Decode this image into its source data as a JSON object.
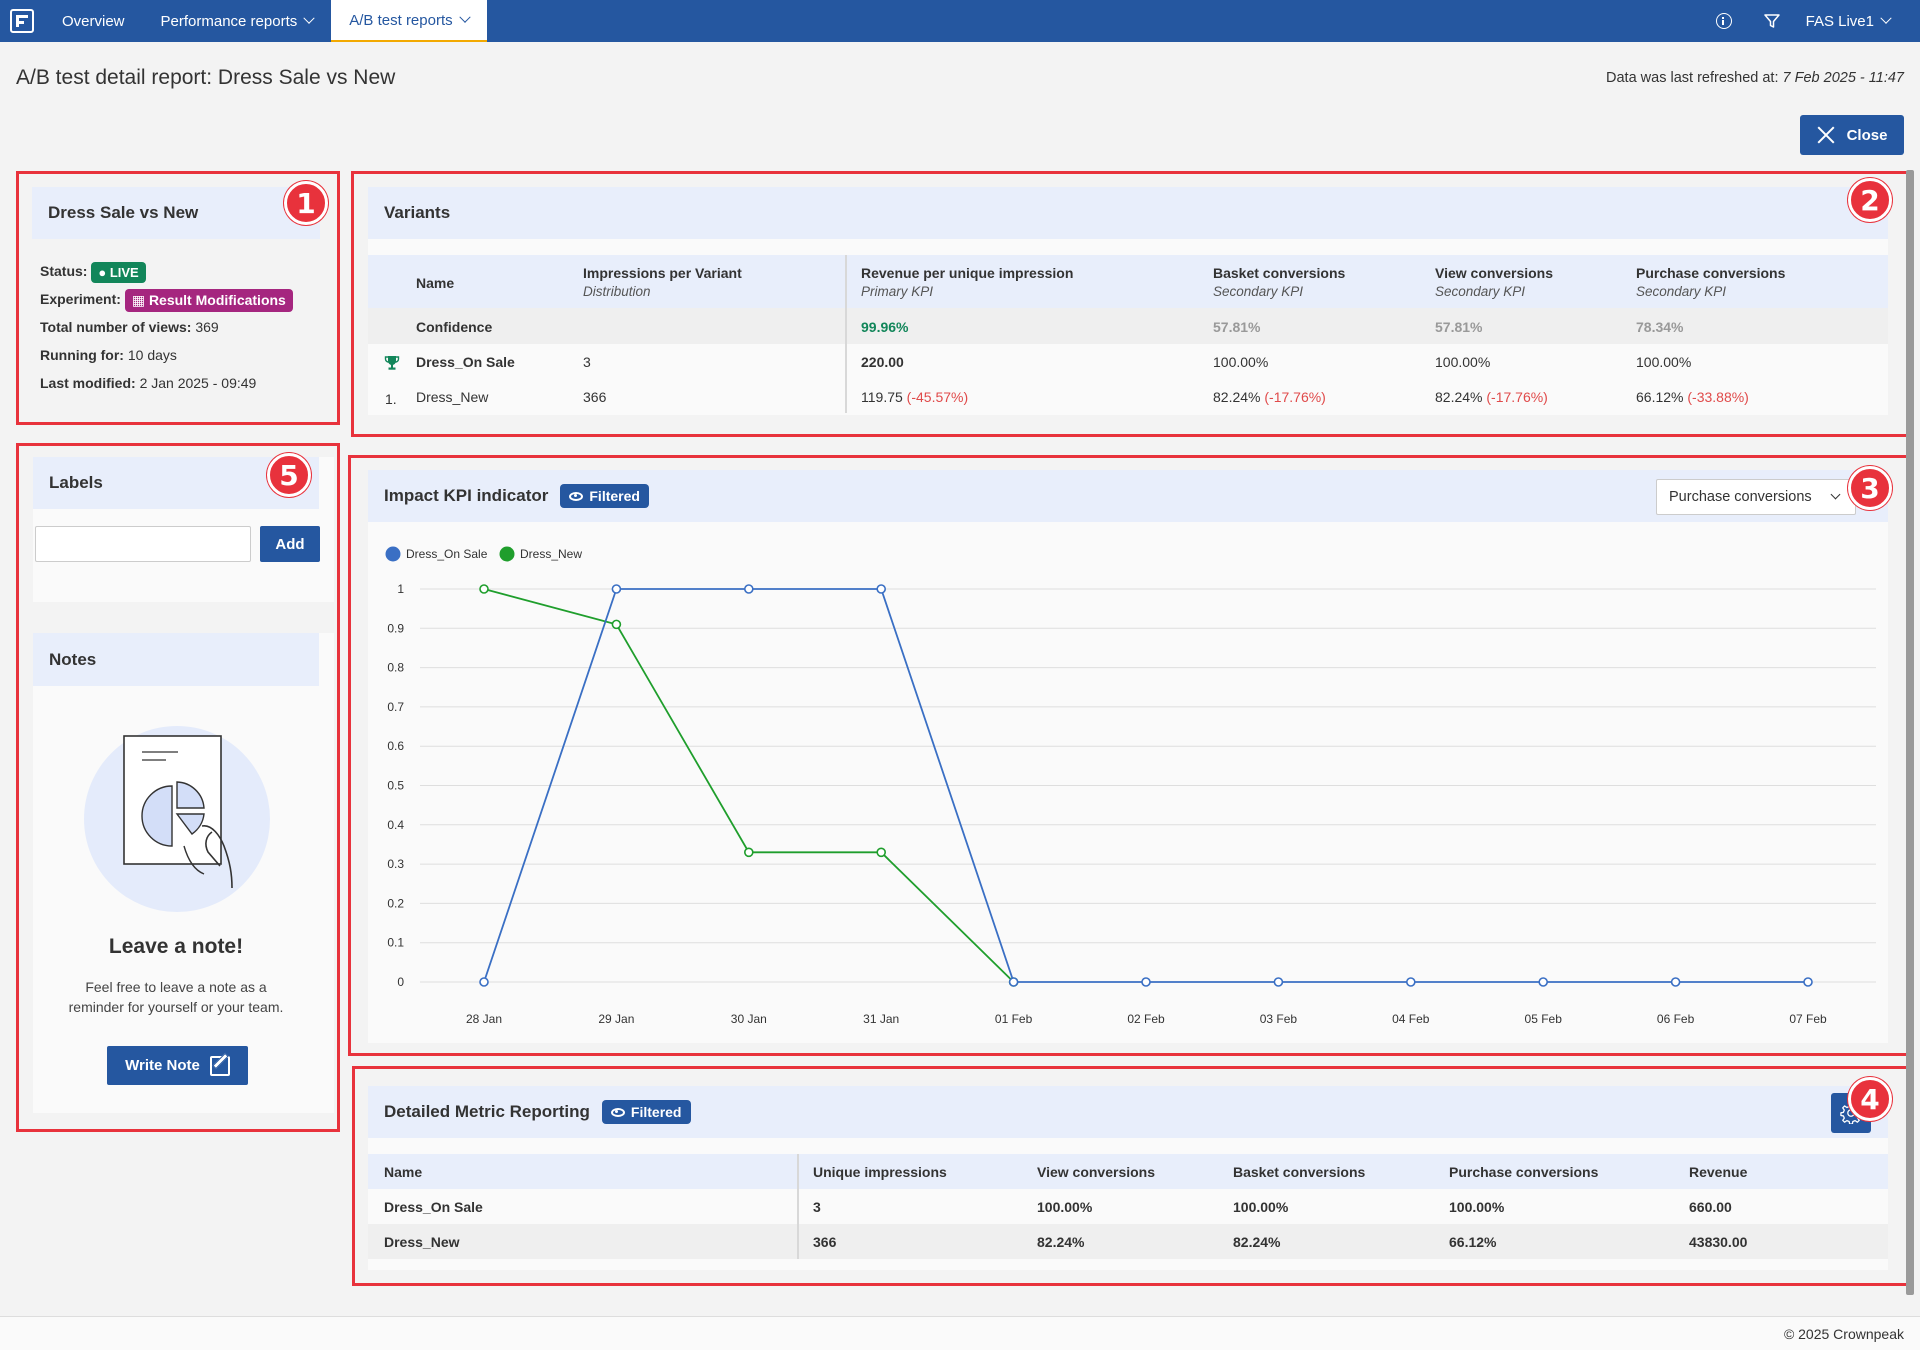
{
  "nav": {
    "items": [
      {
        "label": "Overview"
      },
      {
        "label": "Performance reports"
      },
      {
        "label": "A/B test reports"
      }
    ],
    "account": "FAS Live1"
  },
  "page": {
    "title": "A/B test detail report: Dress Sale vs New",
    "refreshed_prefix": "Data was last refreshed at:",
    "refreshed_value": "7 Feb 2025 - 11:47",
    "close_label": "Close"
  },
  "callouts": [
    "1",
    "2",
    "3",
    "4",
    "5"
  ],
  "summary": {
    "title": "Dress Sale vs New",
    "status_label": "Status:",
    "status_value": "LIVE",
    "experiment_label": "Experiment:",
    "experiment_value": "Result Modifications",
    "views_label": "Total number of views:",
    "views_value": "369",
    "running_label": "Running for:",
    "running_value": "10 days",
    "modified_label": "Last modified:",
    "modified_value": "2 Jan 2025 - 09:49"
  },
  "variants": {
    "title": "Variants",
    "headers": [
      {
        "name": "Name",
        "sub": ""
      },
      {
        "name": "Impressions per Variant",
        "sub": "Distribution"
      },
      {
        "name": "Revenue per unique impression",
        "sub": "Primary KPI"
      },
      {
        "name": "Basket conversions",
        "sub": "Secondary KPI"
      },
      {
        "name": "View conversions",
        "sub": "Secondary KPI"
      },
      {
        "name": "Purchase conversions",
        "sub": "Secondary KPI"
      }
    ],
    "confidence": {
      "label": "Confidence",
      "revenue": "99.96%",
      "basket": "57.81%",
      "view": "57.81%",
      "purchase": "78.34%"
    },
    "rows": [
      {
        "rank": "",
        "name": "Dress_On Sale",
        "impressions": "3",
        "revenue": "220.00",
        "revenue_delta": "",
        "basket": "100.00%",
        "basket_delta": "",
        "view": "100.00%",
        "view_delta": "",
        "purchase": "100.00%",
        "purchase_delta": ""
      },
      {
        "rank": "1.",
        "name": "Dress_New",
        "impressions": "366",
        "revenue": "119.75",
        "revenue_delta": "(-45.57%)",
        "basket": "82.24%",
        "basket_delta": "(-17.76%)",
        "view": "82.24%",
        "view_delta": "(-17.76%)",
        "purchase": "66.12%",
        "purchase_delta": "(-33.88%)"
      }
    ]
  },
  "labels": {
    "title": "Labels",
    "input_value": "",
    "add_label": "Add"
  },
  "notes": {
    "title": "Notes",
    "empty_title": "Leave a note!",
    "empty_line1": "Feel free to leave a note as a",
    "empty_line2": "reminder for yourself or your team.",
    "write_label": "Write Note"
  },
  "impact": {
    "title": "Impact KPI indicator",
    "filtered_label": "Filtered",
    "selected_metric": "Purchase conversions"
  },
  "chart_data": {
    "type": "line",
    "x": [
      "28 Jan",
      "29 Jan",
      "30 Jan",
      "31 Jan",
      "01 Feb",
      "02 Feb",
      "03 Feb",
      "04 Feb",
      "05 Feb",
      "06 Feb",
      "07 Feb"
    ],
    "series": [
      {
        "name": "Dress_On Sale",
        "color": "#3a6fc4",
        "values": [
          0,
          1,
          1,
          1,
          0,
          0,
          0,
          0,
          0,
          0,
          0
        ]
      },
      {
        "name": "Dress_New",
        "color": "#1f9e2c",
        "values": [
          1,
          0.91,
          0.33,
          0.33,
          0,
          null,
          null,
          null,
          null,
          null,
          null
        ]
      }
    ],
    "yticks": [
      "0",
      "0.1",
      "0.2",
      "0.3",
      "0.4",
      "0.5",
      "0.6",
      "0.7",
      "0.8",
      "0.9",
      "1"
    ],
    "ylim": [
      0,
      1
    ],
    "grid": true,
    "legend": "top-left"
  },
  "metrics": {
    "title": "Detailed Metric Reporting",
    "filtered_label": "Filtered",
    "headers": [
      "Name",
      "Unique impressions",
      "View conversions",
      "Basket conversions",
      "Purchase conversions",
      "Revenue"
    ],
    "rows": [
      [
        "Dress_On Sale",
        "3",
        "100.00%",
        "100.00%",
        "100.00%",
        "660.00"
      ],
      [
        "Dress_New",
        "366",
        "82.24%",
        "82.24%",
        "66.12%",
        "43830.00"
      ]
    ]
  },
  "footer": {
    "copyright": "© 2025 Crownpeak"
  }
}
